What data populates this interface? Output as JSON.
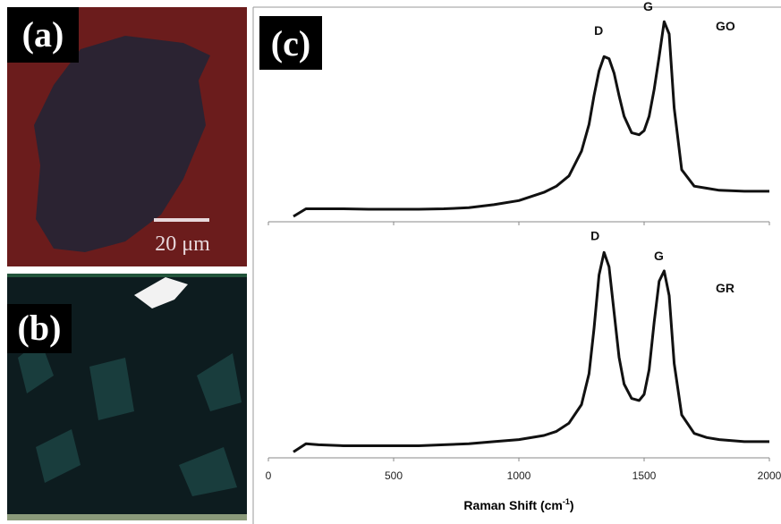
{
  "panels": {
    "a": {
      "label": "(a)",
      "scale_bar": "20 μm"
    },
    "b": {
      "label": "(b)"
    },
    "c": {
      "label": "(c)"
    }
  },
  "chart_data": [
    {
      "type": "line",
      "xlim": [
        0,
        2000
      ],
      "ylim": [
        0,
        100
      ],
      "annotations": [
        "D",
        "G"
      ],
      "x": [
        100,
        150,
        200,
        300,
        400,
        500,
        600,
        700,
        800,
        900,
        1000,
        1100,
        1150,
        1200,
        1250,
        1280,
        1300,
        1320,
        1340,
        1360,
        1380,
        1400,
        1420,
        1450,
        1480,
        1500,
        1520,
        1540,
        1560,
        1580,
        1600,
        1620,
        1650,
        1700,
        1750,
        1800,
        1900,
        2000
      ],
      "series": [
        {
          "name": "GO",
          "color": "#111111",
          "values": [
            1.3,
            5,
            5,
            5,
            4.8,
            4.8,
            4.8,
            5,
            5.5,
            7,
            9,
            13,
            16,
            21,
            33,
            46,
            60,
            72,
            79,
            78,
            71,
            60,
            50,
            42,
            41,
            43,
            50,
            63,
            79,
            96,
            90,
            54,
            24,
            16,
            15,
            14,
            13.5,
            13.5
          ]
        }
      ]
    },
    {
      "type": "line",
      "xlim": [
        0,
        2000
      ],
      "ylim": [
        0,
        100
      ],
      "annotations": [
        "D",
        "G"
      ],
      "xticks": [
        0,
        500,
        1000,
        1500,
        2000
      ],
      "xlabel": "Raman Shift (cm",
      "xlabel_sup": "-1",
      "xlabel_end": ")",
      "x": [
        100,
        150,
        200,
        300,
        400,
        500,
        600,
        700,
        800,
        900,
        1000,
        1100,
        1150,
        1200,
        1250,
        1280,
        1300,
        1320,
        1340,
        1360,
        1380,
        1400,
        1420,
        1450,
        1480,
        1500,
        1520,
        1540,
        1560,
        1580,
        1600,
        1620,
        1650,
        1700,
        1750,
        1800,
        1900,
        2000
      ],
      "series": [
        {
          "name": "GR",
          "color": "#111111",
          "values": [
            2,
            6,
            5.5,
            5,
            5,
            5,
            5,
            5.5,
            6,
            7,
            8,
            10,
            12,
            16,
            25,
            40,
            62,
            88,
            99,
            92,
            70,
            48,
            35,
            28,
            27,
            30,
            42,
            65,
            85,
            90,
            78,
            45,
            20,
            11,
            9,
            8,
            7,
            7
          ]
        }
      ]
    }
  ]
}
